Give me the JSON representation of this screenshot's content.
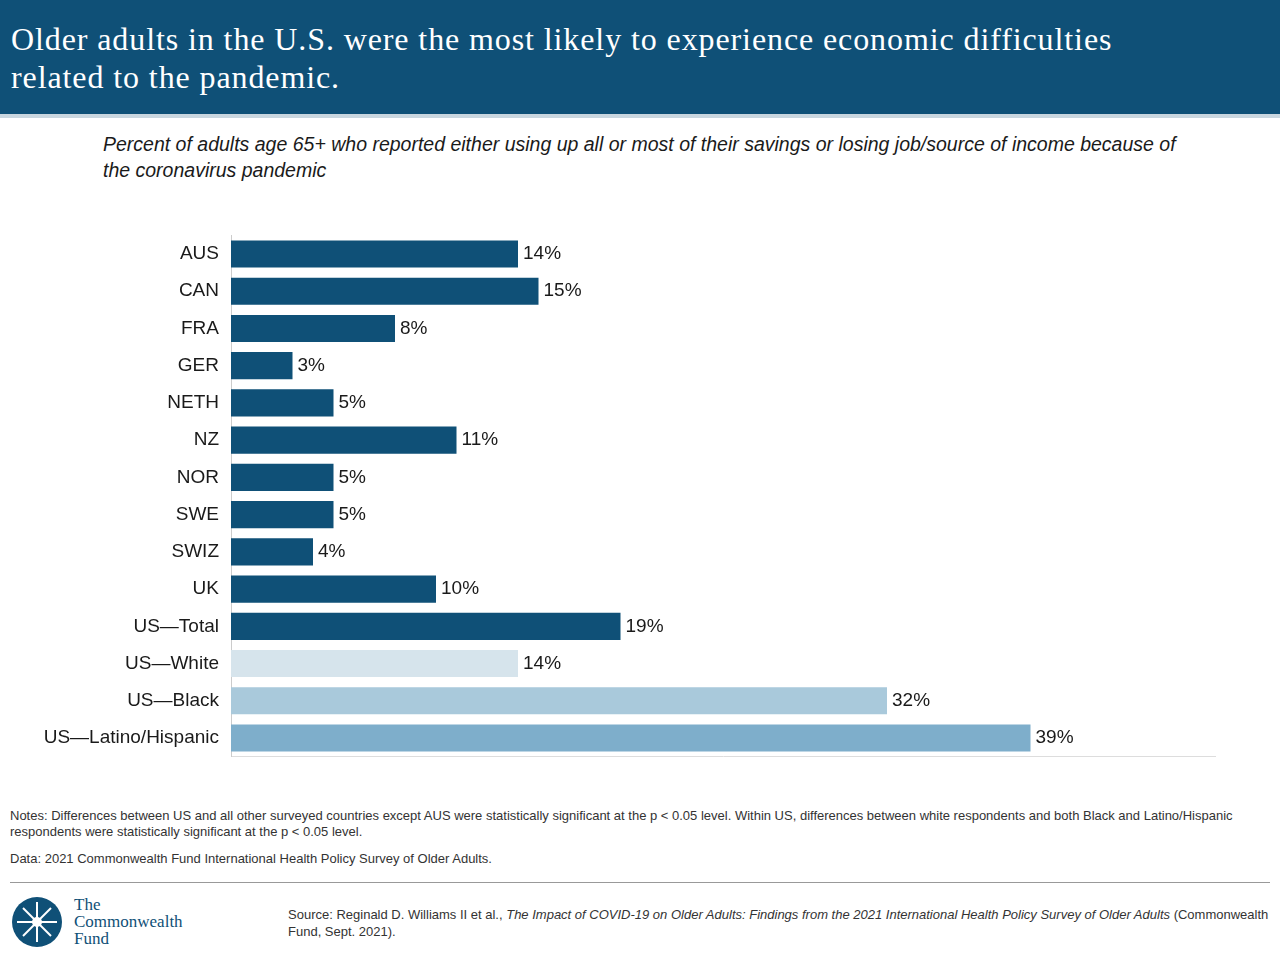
{
  "header": {
    "title": "Older adults in the U.S. were the most likely to experience economic difficulties related to the pandemic."
  },
  "chart_data": {
    "type": "bar",
    "orientation": "horizontal",
    "subtitle": "Percent of adults age 65+ who reported either using up all or most of their savings or losing job/source of income because of the coronavirus pandemic",
    "categories": [
      "AUS",
      "CAN",
      "FRA",
      "GER",
      "NETH",
      "NZ",
      "NOR",
      "SWE",
      "SWIZ",
      "UK",
      "US—Total",
      "US—White",
      "US—Black",
      "US—Latino/Hispanic"
    ],
    "values": [
      14,
      15,
      8,
      3,
      5,
      11,
      5,
      5,
      4,
      10,
      19,
      14,
      32,
      39
    ],
    "value_labels": [
      "14%",
      "15%",
      "8%",
      "3%",
      "5%",
      "11%",
      "5%",
      "5%",
      "4%",
      "10%",
      "19%",
      "14%",
      "32%",
      "39%"
    ],
    "colors": [
      "#0f5077",
      "#0f5077",
      "#0f5077",
      "#0f5077",
      "#0f5077",
      "#0f5077",
      "#0f5077",
      "#0f5077",
      "#0f5077",
      "#0f5077",
      "#0f5077",
      "#d6e4ec",
      "#a9c9db",
      "#7eaecb"
    ],
    "xlim": [
      0,
      48
    ],
    "grid": false,
    "data_labels": true,
    "tick_labels": "y"
  },
  "notes": "Notes: Differences between US and all other surveyed countries except AUS were statistically significant at the p < 0.05 level. Within US, differences between white respondents and both Black and Latino/Hispanic respondents were statistically significant at the p < 0.05 level.",
  "data_note": "Data: 2021 Commonwealth Fund International Health Policy Survey of Older Adults.",
  "source": {
    "prefix": "Source: Reginald D. Williams II et al., ",
    "title": "The Impact of COVID-19 on Older Adults: Findings from the 2021 International Health Policy Survey of Older Adults",
    "suffix": " (Commonwealth Fund, Sept. 2021)."
  },
  "logo": [
    "The",
    "Commonwealth",
    "Fund"
  ]
}
